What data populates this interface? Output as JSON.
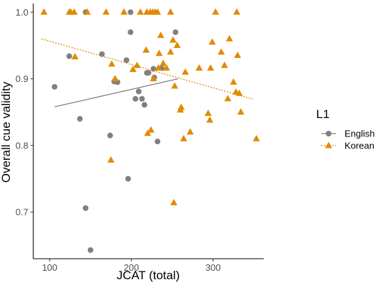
{
  "chart_data": {
    "type": "scatter",
    "xlabel": "JCAT (total)",
    "ylabel": "Overall cue validity",
    "xlim": [
      80,
      362
    ],
    "ylim": [
      0.63,
      1.013
    ],
    "x_ticks": [
      100,
      200,
      300
    ],
    "y_ticks": [
      0.7,
      0.8,
      0.9,
      1.0
    ],
    "y_tick_labels": [
      "0.7",
      "0.8",
      "0.9",
      "1.0"
    ],
    "grid": false,
    "legend": {
      "title": "L1",
      "position": "right"
    },
    "series": [
      {
        "name": "English",
        "marker": "circle",
        "color": "#808080",
        "points": [
          [
            106,
            0.888
          ],
          [
            124,
            0.934
          ],
          [
            137,
            0.84
          ],
          [
            144,
            1.0
          ],
          [
            144,
            0.706
          ],
          [
            150,
            0.643
          ],
          [
            164,
            0.937
          ],
          [
            174,
            0.815
          ],
          [
            179,
            0.896
          ],
          [
            183,
            0.895
          ],
          [
            194,
            0.928
          ],
          [
            196,
            0.75
          ],
          [
            199,
            0.97
          ],
          [
            199,
            1.0
          ],
          [
            205,
            0.87
          ],
          [
            209,
            0.881
          ],
          [
            213,
            0.87
          ],
          [
            216,
            0.861
          ],
          [
            219,
            0.909
          ],
          [
            221,
            0.909
          ],
          [
            227,
            0.915
          ],
          [
            228,
            0.902
          ],
          [
            232,
            0.806
          ],
          [
            237,
            0.916
          ],
          [
            254,
            0.97
          ]
        ],
        "trend": [
          [
            106,
            0.858
          ],
          [
            257,
            0.9
          ]
        ]
      },
      {
        "name": "Korean",
        "marker": "triangle",
        "color": "#E08B00",
        "points": [
          [
            93,
            1.0
          ],
          [
            124,
            1.0
          ],
          [
            126,
            1.0
          ],
          [
            130,
            1.0
          ],
          [
            131,
            0.933
          ],
          [
            146,
            1.0
          ],
          [
            169,
            1.0
          ],
          [
            175,
            0.778
          ],
          [
            176,
            0.922
          ],
          [
            180,
            0.9
          ],
          [
            191,
            1.0
          ],
          [
            202,
            0.914
          ],
          [
            207,
            0.92
          ],
          [
            211,
            1.0
          ],
          [
            218,
            0.943
          ],
          [
            219,
            1.0
          ],
          [
            220,
            0.818
          ],
          [
            223,
            1.0
          ],
          [
            224,
            0.823
          ],
          [
            226,
            1.0
          ],
          [
            227,
            0.9
          ],
          [
            229,
            1.0
          ],
          [
            232,
            1.0
          ],
          [
            233,
            0.916
          ],
          [
            234,
            0.938
          ],
          [
            236,
            0.965
          ],
          [
            239,
            0.923
          ],
          [
            243,
            0.916
          ],
          [
            248,
            0.94
          ],
          [
            248,
            1.0
          ],
          [
            251,
            0.958
          ],
          [
            252,
            0.714
          ],
          [
            253,
            0.889
          ],
          [
            256,
            0.95
          ],
          [
            260,
            0.853
          ],
          [
            261,
            0.857
          ],
          [
            264,
            0.81
          ],
          [
            266,
            0.91
          ],
          [
            272,
            0.82
          ],
          [
            283,
            0.916
          ],
          [
            294,
            0.848
          ],
          [
            296,
            0.838
          ],
          [
            297,
            0.916
          ],
          [
            299,
            0.955
          ],
          [
            303,
            1.0
          ],
          [
            310,
            0.94
          ],
          [
            314,
            0.92
          ],
          [
            318,
            0.87
          ],
          [
            320,
            0.96
          ],
          [
            325,
            0.895
          ],
          [
            328,
            0.88
          ],
          [
            329,
            1.0
          ],
          [
            330,
            0.935
          ],
          [
            332,
            0.878
          ],
          [
            334,
            0.85
          ],
          [
            353,
            0.81
          ]
        ],
        "trend": [
          [
            90,
            0.96
          ],
          [
            350,
            0.869
          ]
        ]
      }
    ]
  }
}
